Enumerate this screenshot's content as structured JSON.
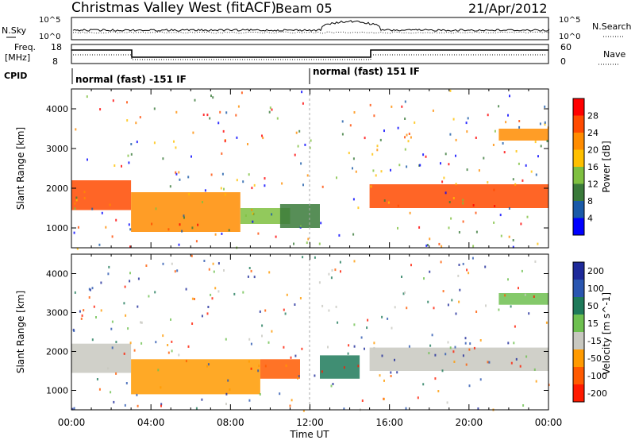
{
  "header": {
    "title": "Christmas Valley West (fitACF)",
    "beam": "Beam 05",
    "date": "21/Apr/2012"
  },
  "sky_panel": {
    "left_label": "N.Sky",
    "left_ticks": [
      "10^5",
      "10^0"
    ],
    "right_ticks": [
      "10^5",
      "10^0"
    ],
    "right_label": "N.Search"
  },
  "freq_panel": {
    "left_label_line1": "Freq.",
    "left_label_line2": "[MHz]",
    "left_ticks": [
      "18",
      "8"
    ],
    "right_ticks": [
      "60",
      "0"
    ],
    "right_label": "Nave"
  },
  "cpid_panel": {
    "label": "CPID",
    "segment1": "normal (fast) -151 IF",
    "segment2": "normal (fast) 151 IF"
  },
  "power_colorbar": {
    "label": "Power [dB]",
    "ticks": [
      "28",
      "24",
      "20",
      "16",
      "12",
      "8",
      "4"
    ],
    "colors": [
      "#ff0000",
      "#ff4a00",
      "#ff8c00",
      "#ffc000",
      "#7fc040",
      "#3a7a3a",
      "#1a5aa8",
      "#0000ff"
    ]
  },
  "velocity_colorbar": {
    "label": "Velocity [m s^-1]",
    "ticks": [
      "200",
      "100",
      "50",
      "15",
      "-15",
      "-50",
      "-100",
      "-200"
    ],
    "colors": [
      "#1e2a9a",
      "#2a56b0",
      "#1f7a5a",
      "#6ec050",
      "#c8c8c0",
      "#ff9a00",
      "#ff5a00",
      "#ff1a00"
    ]
  },
  "xaxis": {
    "label": "Time UT",
    "ticks": [
      "00:00",
      "04:00",
      "08:00",
      "12:00",
      "16:00",
      "20:00",
      "00:00"
    ]
  },
  "chart_data": [
    {
      "type": "heatmap",
      "title": "",
      "xlabel": "Time UT",
      "ylabel": "Slant Range [km]",
      "xlim": [
        "00:00",
        "24:00"
      ],
      "ylim": [
        500,
        4500
      ],
      "yticks": [
        1000,
        2000,
        3000,
        4000
      ],
      "colorbar": "Power [dB]",
      "features": [
        {
          "t_start": 0.0,
          "t_end": 3.0,
          "range_low": 1450,
          "range_high": 2200,
          "power_db": 26
        },
        {
          "t_start": 3.0,
          "t_end": 8.5,
          "range_low": 900,
          "range_high": 1900,
          "power_db": 22
        },
        {
          "t_start": 8.5,
          "t_end": 11.0,
          "range_low": 1100,
          "range_high": 1500,
          "power_db": 14
        },
        {
          "t_start": 10.5,
          "t_end": 12.5,
          "range_low": 1000,
          "range_high": 1600,
          "power_db": 10
        },
        {
          "t_start": 15.0,
          "t_end": 24.0,
          "range_low": 1500,
          "range_high": 2100,
          "power_db": 24
        },
        {
          "t_start": 21.5,
          "t_end": 24.0,
          "range_low": 3200,
          "range_high": 3500,
          "power_db": 22
        }
      ]
    },
    {
      "type": "heatmap",
      "title": "",
      "xlabel": "Time UT",
      "ylabel": "Slant Range [km]",
      "xlim": [
        "00:00",
        "24:00"
      ],
      "ylim": [
        500,
        4500
      ],
      "yticks": [
        1000,
        2000,
        3000,
        4000
      ],
      "colorbar": "Velocity [m s^-1]",
      "features": [
        {
          "t_start": 0.0,
          "t_end": 3.0,
          "range_low": 1450,
          "range_high": 2200,
          "velocity": 0
        },
        {
          "t_start": 3.0,
          "t_end": 9.5,
          "range_low": 900,
          "range_high": 1800,
          "velocity": -50
        },
        {
          "t_start": 9.5,
          "t_end": 11.5,
          "range_low": 1300,
          "range_high": 1800,
          "velocity": -100
        },
        {
          "t_start": 12.5,
          "t_end": 14.5,
          "range_low": 1300,
          "range_high": 1900,
          "velocity": 50
        },
        {
          "t_start": 15.0,
          "t_end": 24.0,
          "range_low": 1500,
          "range_high": 2100,
          "velocity": 0
        },
        {
          "t_start": 21.5,
          "t_end": 24.0,
          "range_low": 3200,
          "range_high": 3500,
          "velocity": 15
        }
      ]
    }
  ]
}
